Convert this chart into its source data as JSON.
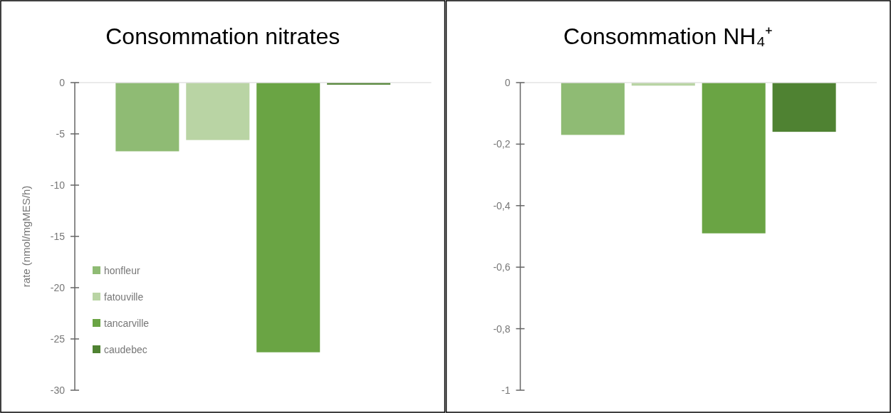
{
  "chart_data": [
    {
      "type": "bar",
      "title": "Consommation nitrates",
      "ylabel": "rate (nmol/mgMES/h)",
      "categories": [
        null
      ],
      "ylim": [
        -30,
        0
      ],
      "yticks": [
        0,
        -5,
        -10,
        -15,
        -20,
        -25,
        -30
      ],
      "legend": "bottom left",
      "series": [
        {
          "name": "honfleur",
          "color": "#8fbb74",
          "values": [
            -6.7
          ]
        },
        {
          "name": "fatouville",
          "color": "#b9d4a4",
          "values": [
            -5.6
          ]
        },
        {
          "name": "tancarville",
          "color": "#6aa444",
          "values": [
            -26.3
          ]
        },
        {
          "name": "caudebec",
          "color": "#4f8232",
          "values": [
            -0.2
          ]
        }
      ]
    },
    {
      "type": "bar",
      "title": "Consommation NH₄⁺",
      "categories": [
        null
      ],
      "ylim": [
        -1,
        0
      ],
      "yticks": [
        0,
        {
          "value": -0.2,
          "label": "-0,2"
        },
        {
          "value": -0.4,
          "label": "-0,4"
        },
        {
          "value": -0.6,
          "label": "-0,6"
        },
        {
          "value": -0.8,
          "label": "-0,8"
        },
        -1
      ],
      "series": [
        {
          "color": "#8fbb74",
          "values": [
            -0.17
          ]
        },
        {
          "color": "#b9d4a4",
          "values": [
            -0.01
          ]
        },
        {
          "color": "#6aa444",
          "values": [
            -0.49
          ]
        },
        {
          "color": "#4f8232",
          "values": [
            -0.16
          ]
        }
      ]
    }
  ]
}
